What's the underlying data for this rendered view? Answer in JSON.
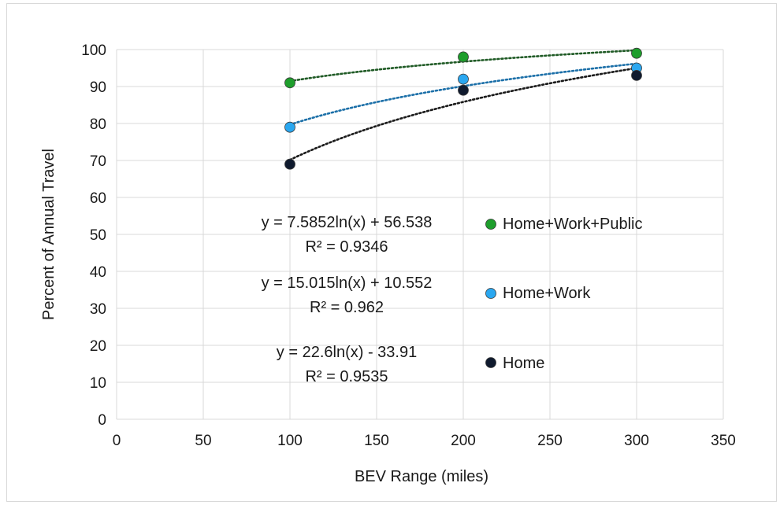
{
  "chart_data": {
    "type": "scatter",
    "title": "",
    "xlabel": "BEV Range (miles)",
    "ylabel": "Percent of Annual Travel",
    "xlim": [
      0,
      350
    ],
    "ylim": [
      0,
      100
    ],
    "x_ticks": [
      0,
      50,
      100,
      150,
      200,
      250,
      300,
      350
    ],
    "y_ticks": [
      0,
      10,
      20,
      30,
      40,
      50,
      60,
      70,
      80,
      90,
      100
    ],
    "grid": true,
    "legend_position": "right-inside",
    "series": [
      {
        "name": "Home+Work+Public",
        "color": "#1e9e2c",
        "trend_color": "#1f5a25",
        "x": [
          100,
          200,
          300
        ],
        "y": [
          91,
          98,
          99
        ],
        "trendline": {
          "type": "logarithmic",
          "a": 7.5852,
          "b": 56.538
        },
        "equation": "y = 7.5852ln(x) + 56.538",
        "r2": "R² = 0.9346"
      },
      {
        "name": "Home+Work",
        "color": "#2aa7f0",
        "trend_color": "#1b6fa8",
        "x": [
          100,
          200,
          300
        ],
        "y": [
          79,
          92,
          95
        ],
        "trendline": {
          "type": "logarithmic",
          "a": 15.015,
          "b": 10.552
        },
        "equation": "y = 15.015ln(x) + 10.552",
        "r2": "R² = 0.962"
      },
      {
        "name": "Home",
        "color": "#0f1a2e",
        "trend_color": "#1a1a1a",
        "x": [
          100,
          200,
          300
        ],
        "y": [
          69,
          89,
          93
        ],
        "trendline": {
          "type": "logarithmic",
          "a": 22.6,
          "b": -33.91
        },
        "equation": "y = 22.6ln(x) - 33.91",
        "r2": "R² = 0.9535"
      }
    ]
  }
}
